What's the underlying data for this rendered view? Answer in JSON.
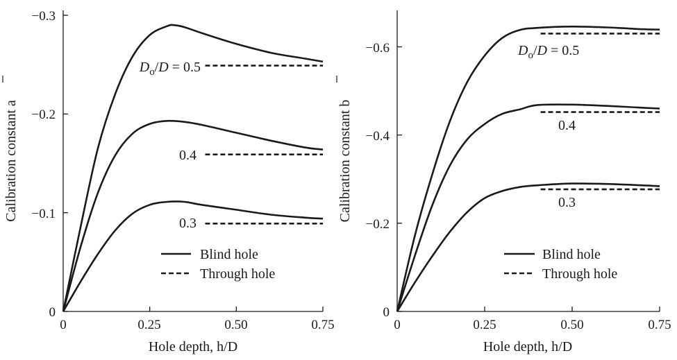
{
  "chart_data": [
    {
      "type": "line",
      "xlabel": "Hole depth, h/D",
      "ylabel": "Calibration constant a",
      "xlim": [
        0,
        0.75
      ],
      "ylim": [
        0,
        -0.3
      ],
      "x_ticks": [
        "0",
        "0.25",
        "0.50",
        "0.75"
      ],
      "y_ticks": [
        "0",
        "−0.1",
        "−0.2",
        "−0.3"
      ],
      "legend": {
        "placement": "bottom-right",
        "entries": [
          {
            "label": "Blind hole",
            "style": "solid"
          },
          {
            "label": "Through hole",
            "style": "dashed"
          }
        ]
      },
      "series": [
        {
          "name": "Dₒ/D = 0.5",
          "label": "Dₒ/D = 0.5",
          "style": "solid",
          "x": [
            0,
            0.05,
            0.1,
            0.15,
            0.2,
            0.25,
            0.3,
            0.32,
            0.35,
            0.4,
            0.5,
            0.6,
            0.7,
            0.75
          ],
          "y": [
            0,
            -0.085,
            -0.165,
            -0.22,
            -0.258,
            -0.28,
            -0.289,
            -0.29,
            -0.288,
            -0.282,
            -0.271,
            -0.262,
            -0.256,
            -0.253
          ]
        },
        {
          "name": "Dₒ/D = 0.5",
          "style": "dashed",
          "x": [
            0.41,
            0.75
          ],
          "y": [
            -0.249,
            -0.249
          ]
        },
        {
          "name": "Dₒ/D = 0.4",
          "label": "0.4",
          "style": "solid",
          "x": [
            0,
            0.05,
            0.1,
            0.15,
            0.2,
            0.25,
            0.3,
            0.35,
            0.4,
            0.5,
            0.6,
            0.7,
            0.75
          ],
          "y": [
            0,
            -0.065,
            -0.12,
            -0.158,
            -0.18,
            -0.19,
            -0.193,
            -0.192,
            -0.189,
            -0.181,
            -0.173,
            -0.166,
            -0.164
          ]
        },
        {
          "name": "Dₒ/D = 0.4",
          "style": "dashed",
          "x": [
            0.41,
            0.75
          ],
          "y": [
            -0.159,
            -0.159
          ]
        },
        {
          "name": "Dₒ/D = 0.3",
          "label": "0.3",
          "style": "solid",
          "x": [
            0,
            0.05,
            0.1,
            0.15,
            0.2,
            0.25,
            0.3,
            0.35,
            0.4,
            0.5,
            0.6,
            0.7,
            0.75
          ],
          "y": [
            0,
            -0.03,
            -0.058,
            -0.082,
            -0.099,
            -0.108,
            -0.111,
            -0.111,
            -0.108,
            -0.103,
            -0.098,
            -0.095,
            -0.094
          ]
        },
        {
          "name": "Dₒ/D = 0.3",
          "style": "dashed",
          "x": [
            0.41,
            0.75
          ],
          "y": [
            -0.089,
            -0.089
          ]
        }
      ]
    },
    {
      "type": "line",
      "xlabel": "Hole depth, h/D",
      "ylabel": "Calibration constant b",
      "xlim": [
        0,
        0.75
      ],
      "ylim": [
        0,
        -0.67
      ],
      "x_ticks": [
        "0",
        "0.25",
        "0.50",
        "0.75"
      ],
      "y_ticks": [
        "0",
        "−0.2",
        "−0.4",
        "−0.6"
      ],
      "legend": {
        "placement": "bottom-right",
        "entries": [
          {
            "label": "Blind hole",
            "style": "solid"
          },
          {
            "label": "Through hole",
            "style": "dashed"
          }
        ]
      },
      "series": [
        {
          "name": "Dₒ/D = 0.5",
          "label": "Dₒ/D = 0.5",
          "style": "solid",
          "x": [
            0,
            0.05,
            0.1,
            0.15,
            0.2,
            0.25,
            0.3,
            0.35,
            0.4,
            0.5,
            0.6,
            0.7,
            0.75
          ],
          "y": [
            0,
            -0.17,
            -0.31,
            -0.43,
            -0.52,
            -0.58,
            -0.62,
            -0.638,
            -0.643,
            -0.646,
            -0.644,
            -0.64,
            -0.639
          ]
        },
        {
          "name": "Dₒ/D = 0.5",
          "style": "dashed",
          "x": [
            0.41,
            0.75
          ],
          "y": [
            -0.63,
            -0.63
          ]
        },
        {
          "name": "Dₒ/D = 0.4",
          "label": "0.4",
          "style": "solid",
          "x": [
            0,
            0.05,
            0.1,
            0.15,
            0.2,
            0.25,
            0.3,
            0.35,
            0.4,
            0.5,
            0.6,
            0.7,
            0.75
          ],
          "y": [
            0,
            -0.125,
            -0.24,
            -0.33,
            -0.39,
            -0.425,
            -0.448,
            -0.458,
            -0.468,
            -0.469,
            -0.466,
            -0.462,
            -0.46
          ]
        },
        {
          "name": "Dₒ/D = 0.4",
          "style": "dashed",
          "x": [
            0.41,
            0.75
          ],
          "y": [
            -0.452,
            -0.452
          ]
        },
        {
          "name": "Dₒ/D = 0.3",
          "label": "0.3",
          "style": "solid",
          "x": [
            0,
            0.05,
            0.1,
            0.15,
            0.2,
            0.25,
            0.3,
            0.35,
            0.4,
            0.5,
            0.6,
            0.7,
            0.75
          ],
          "y": [
            0,
            -0.065,
            -0.125,
            -0.18,
            -0.225,
            -0.257,
            -0.273,
            -0.282,
            -0.286,
            -0.29,
            -0.289,
            -0.286,
            -0.284
          ]
        },
        {
          "name": "Dₒ/D = 0.3",
          "style": "dashed",
          "x": [
            0.41,
            0.75
          ],
          "y": [
            -0.277,
            -0.277
          ]
        }
      ]
    }
  ]
}
